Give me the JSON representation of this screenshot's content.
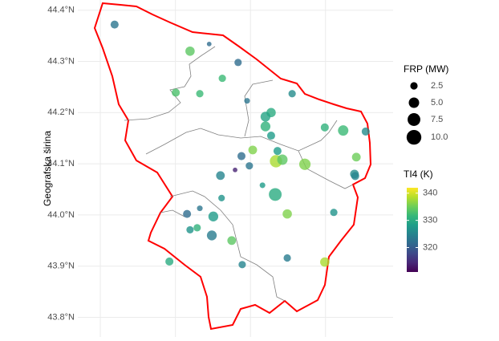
{
  "chart_data": {
    "type": "scatter",
    "y_label": "Geografska širina",
    "xlim": [
      20.34,
      21.18
    ],
    "xticks": [
      20.4,
      20.6,
      20.8,
      21.0
    ],
    "ylim": [
      43.76,
      44.42
    ],
    "yticks": [
      {
        "value": 43.8,
        "label": "43.8°N"
      },
      {
        "value": 43.9,
        "label": "43.9°N"
      },
      {
        "value": 44.0,
        "label": "44.0°N"
      },
      {
        "value": 44.1,
        "label": "44.1°N"
      },
      {
        "value": 44.2,
        "label": "44.2°N"
      },
      {
        "value": 44.3,
        "label": "44.3°N"
      },
      {
        "value": 44.4,
        "label": "44.4°N"
      }
    ],
    "grid": true,
    "x": [
      20.438,
      20.639,
      20.69,
      20.767,
      20.725,
      20.601,
      20.665,
      20.911,
      20.791,
      20.855,
      20.84,
      20.84,
      20.855,
      20.998,
      21.047,
      21.107,
      20.806,
      20.872,
      20.776,
      20.868,
      20.885,
      20.945,
      21.082,
      20.797,
      20.759,
      20.72,
      21.077,
      21.079,
      20.832,
      20.866,
      20.723,
      20.665,
      20.631,
      20.701,
      20.898,
      21.022,
      20.639,
      20.658,
      20.697,
      20.75,
      20.584,
      20.778,
      20.898,
      20.998
    ],
    "y": [
      44.372,
      44.32,
      44.334,
      44.298,
      44.267,
      44.239,
      44.237,
      44.237,
      44.223,
      44.2,
      44.192,
      44.173,
      44.155,
      44.171,
      44.165,
      44.163,
      44.127,
      44.125,
      44.115,
      44.105,
      44.108,
      44.099,
      44.113,
      44.096,
      44.088,
      44.077,
      44.08,
      44.076,
      44.058,
      44.04,
      44.033,
      44.013,
      44.002,
      43.997,
      44.002,
      44.005,
      43.971,
      43.975,
      43.96,
      43.95,
      43.909,
      43.903,
      43.916,
      43.908
    ],
    "frp": [
      3,
      4,
      1,
      2.5,
      2.5,
      3,
      2.5,
      2.5,
      1.5,
      4,
      4.5,
      4.5,
      3,
      3,
      5,
      3,
      3.5,
      3,
      3,
      7,
      5,
      6,
      3.5,
      2.5,
      1,
      3.5,
      3.5,
      3,
      1.5,
      7.5,
      2,
      1.5,
      3,
      4.5,
      4,
      2.5,
      2.5,
      2.5,
      4.5,
      3.5,
      3,
      2.5,
      2.5,
      4
    ],
    "ti4": [
      323,
      334,
      322,
      322,
      332,
      333,
      332,
      326,
      323,
      330,
      329,
      331,
      328,
      331,
      332,
      326,
      336,
      328,
      322,
      338,
      334,
      336,
      335,
      323,
      314,
      325,
      326,
      325,
      328,
      330,
      327,
      323,
      322,
      328,
      336,
      327,
      327,
      331,
      324,
      334,
      330,
      325,
      324,
      338
    ],
    "size_legend_title": "FRP (MW)",
    "size_legend": [
      2.5,
      {
        "value": 5,
        "label": "5.0"
      },
      7.5,
      {
        "value": 10,
        "label": "10.0"
      }
    ],
    "color_legend_title": "TI4 (K)",
    "clim": [
      311,
      342
    ],
    "cticks": [
      320,
      330,
      340
    ]
  }
}
